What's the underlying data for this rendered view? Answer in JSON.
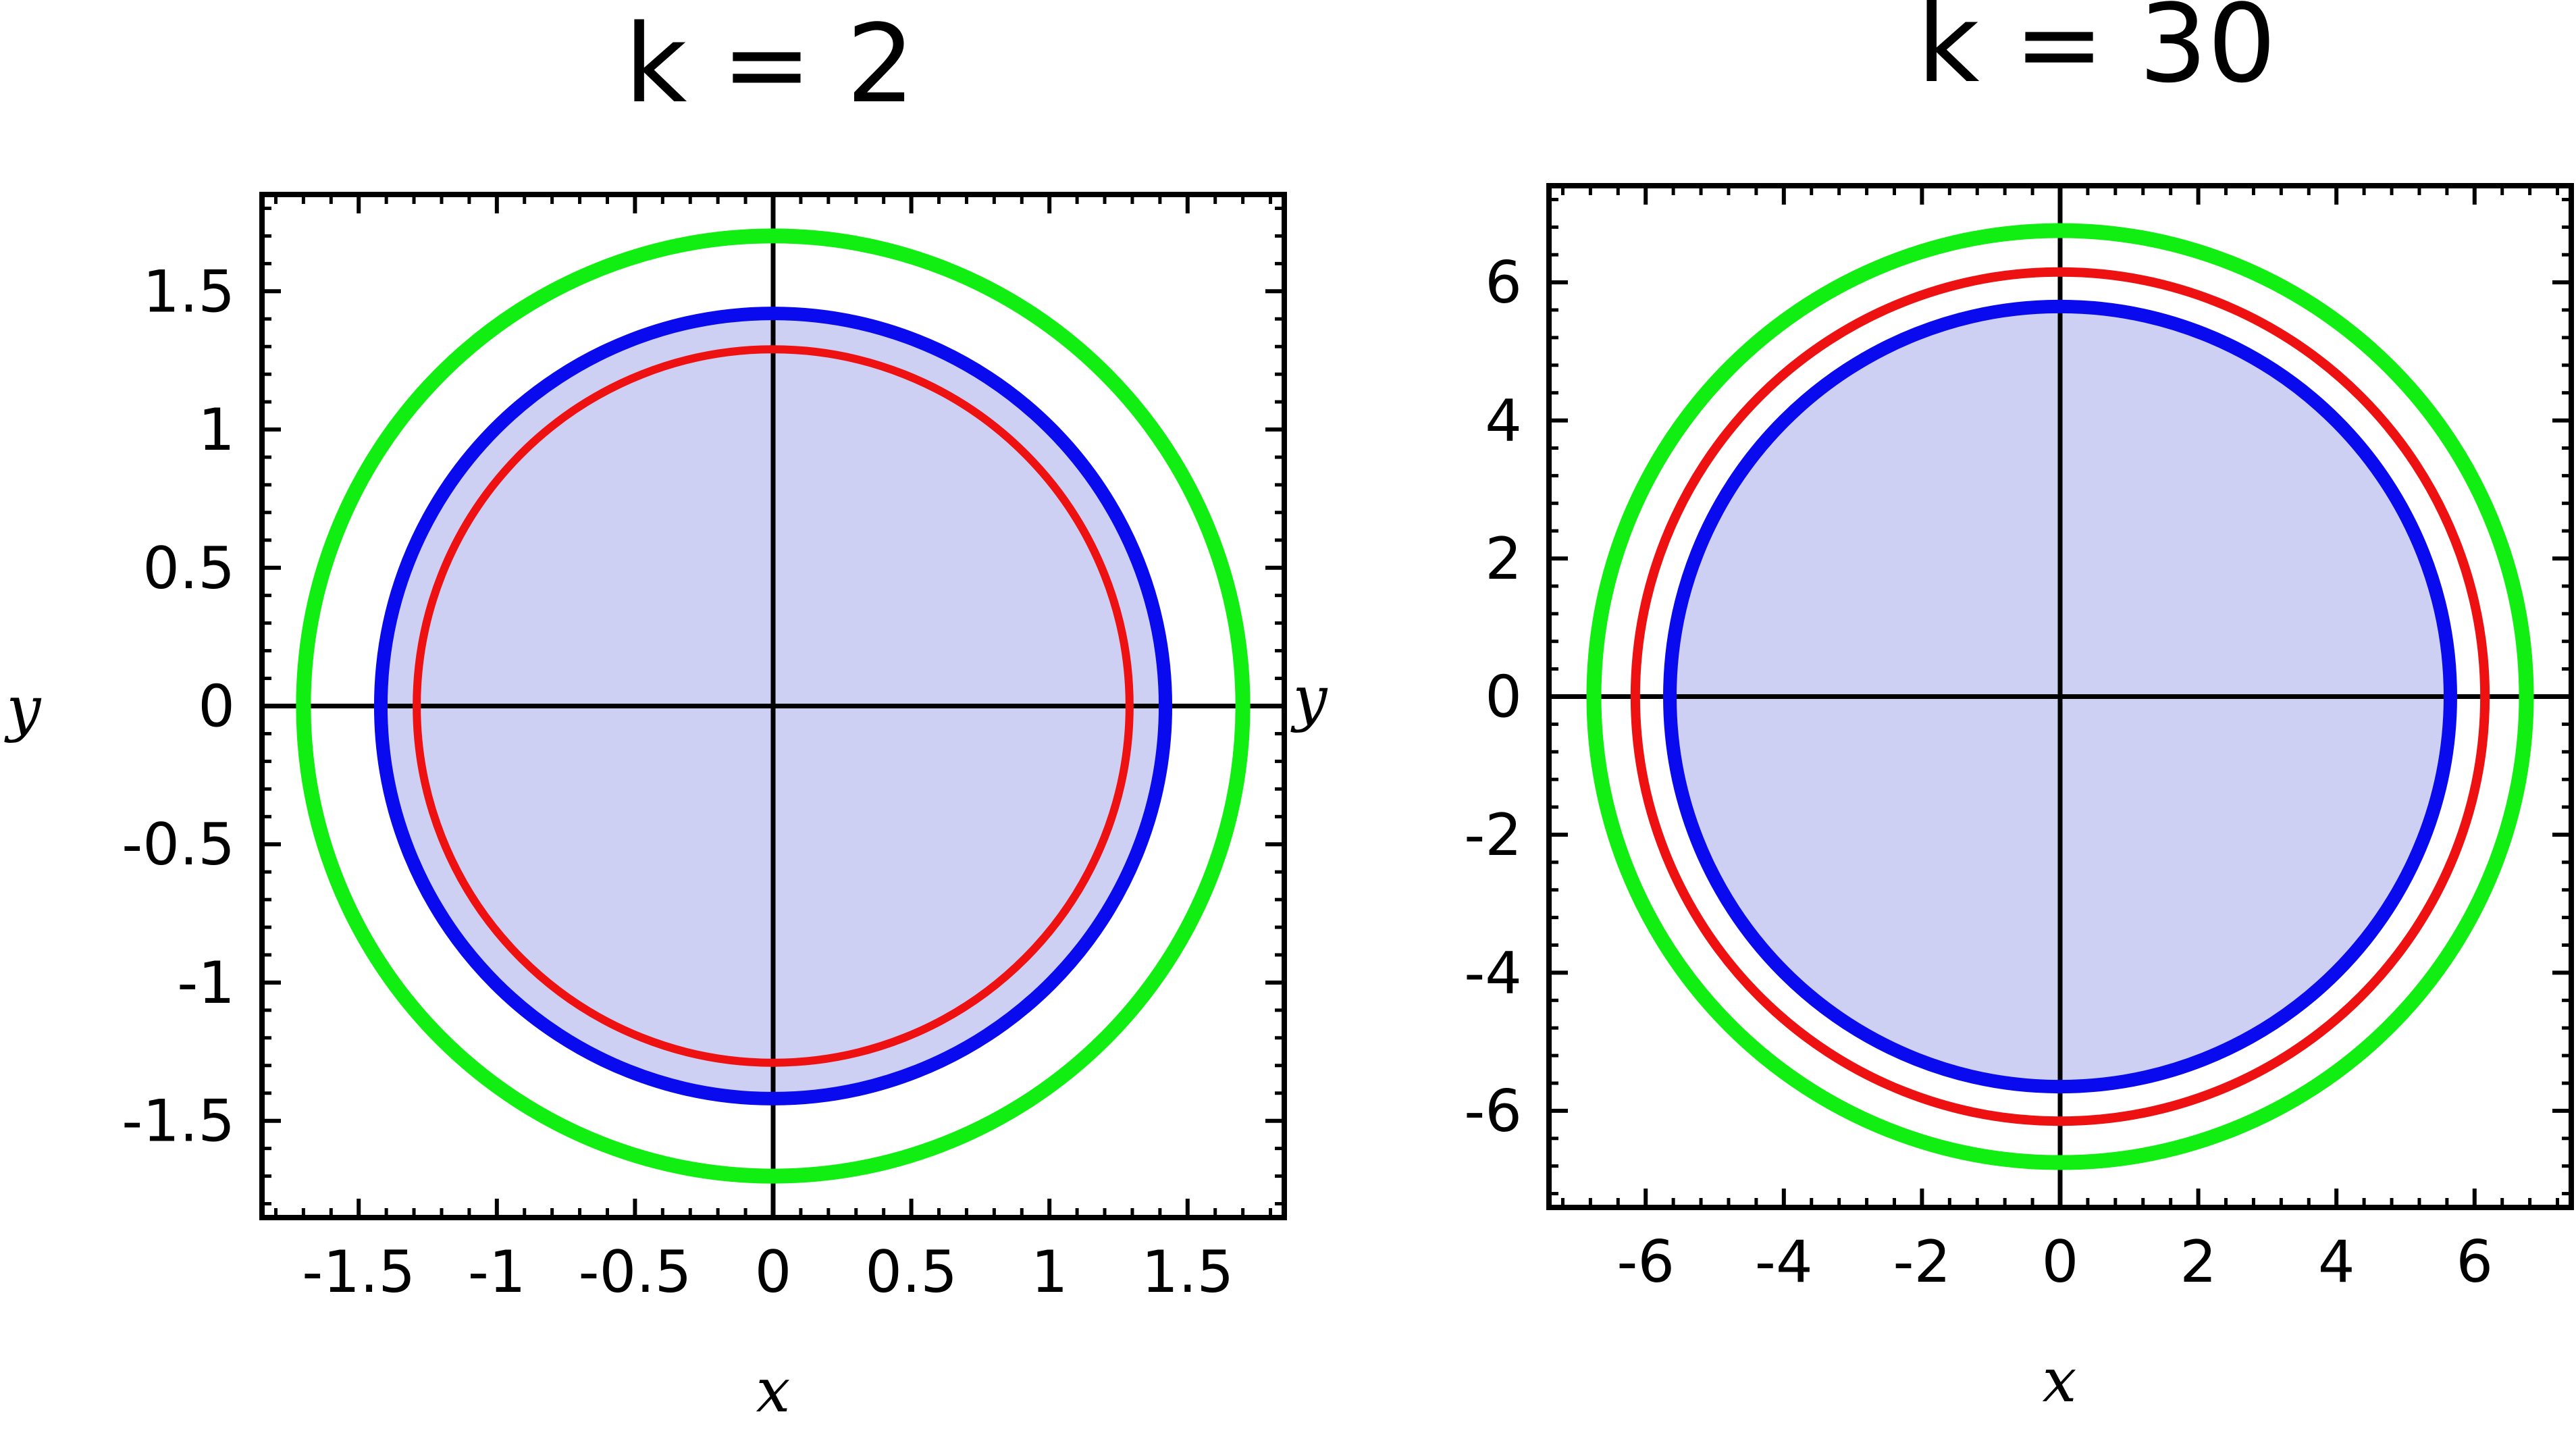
{
  "chart_data": [
    {
      "type": "line",
      "title": "k = 2",
      "xlabel": "x",
      "ylabel": "y",
      "xlim": [
        -1.85,
        1.85
      ],
      "ylim": [
        -1.85,
        1.85
      ],
      "xticks": [
        -1.5,
        -1,
        -0.5,
        0,
        0.5,
        1,
        1.5
      ],
      "xtick_labels": [
        "-1.5",
        "-1",
        "-0.5",
        "0",
        "0.5",
        "1",
        "1.5"
      ],
      "yticks": [
        1.5,
        1,
        0.5,
        0,
        -0.5,
        -1,
        -1.5
      ],
      "ytick_labels": [
        "1.5",
        "1",
        "0.5",
        "0",
        "-0.5",
        "-1",
        "-1.5"
      ],
      "minor_step": 0.1,
      "grid": false,
      "fill": {
        "radius": 1.42,
        "color": "#cdd0f3"
      },
      "series": [
        {
          "shape": "circle",
          "center": [
            0,
            0
          ],
          "radius": 1.7,
          "color": "#11ee11",
          "width": 22
        },
        {
          "shape": "circle",
          "center": [
            0,
            0
          ],
          "radius": 1.42,
          "color": "#0a0aee",
          "width": 20
        },
        {
          "shape": "circle",
          "center": [
            0,
            0
          ],
          "radius": 1.29,
          "color": "#ee1111",
          "width": 12
        }
      ]
    },
    {
      "type": "line",
      "title": "k = 30",
      "xlabel": "x",
      "ylabel": "y",
      "xlim": [
        -7.4,
        7.4
      ],
      "ylim": [
        -7.4,
        7.4
      ],
      "xticks": [
        -6,
        -4,
        -2,
        0,
        2,
        4,
        6
      ],
      "xtick_labels": [
        "-6",
        "-4",
        "-2",
        "0",
        "2",
        "4",
        "6"
      ],
      "yticks": [
        6,
        4,
        2,
        0,
        -2,
        -4,
        -6
      ],
      "ytick_labels": [
        "6",
        "4",
        "2",
        "0",
        "-2",
        "-4",
        "-6"
      ],
      "minor_step": 0.4,
      "grid": false,
      "fill": {
        "radius": 5.65,
        "color": "#cdd0f3"
      },
      "series": [
        {
          "shape": "circle",
          "center": [
            0,
            0
          ],
          "radius": 6.75,
          "color": "#11ee11",
          "width": 22
        },
        {
          "shape": "circle",
          "center": [
            0,
            0
          ],
          "radius": 6.15,
          "color": "#ee1111",
          "width": 14
        },
        {
          "shape": "circle",
          "center": [
            0,
            0
          ],
          "radius": 5.65,
          "color": "#0a0aee",
          "width": 20
        }
      ]
    }
  ]
}
